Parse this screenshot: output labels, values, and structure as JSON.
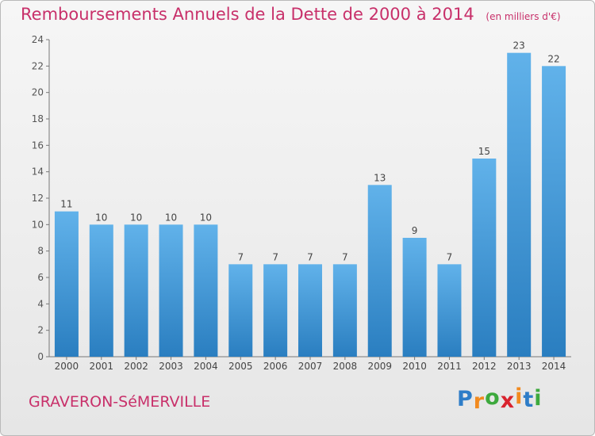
{
  "header": {
    "title": "Remboursements Annuels de la Dette de 2000 à 2014",
    "unit": "(en milliers d'€)"
  },
  "footer": {
    "city": "GRAVERON-SéMERVILLE",
    "logo_letters": [
      "P",
      "r",
      "o",
      "x",
      "i",
      "t",
      "i"
    ],
    "logo_colors": [
      "#2e7dc8",
      "#f28a1e",
      "#3da93d",
      "#d9232e",
      "#f28a1e",
      "#2e7dc8",
      "#3da93d"
    ]
  },
  "colors": {
    "title": "#c8306a",
    "bar_top": "#61b2ea",
    "bar_bottom": "#2a7ec0"
  },
  "chart_data": {
    "type": "bar",
    "title": "Remboursements Annuels de la Dette de 2000 à 2014",
    "xlabel": "",
    "ylabel": "",
    "ylim": [
      0,
      24
    ],
    "yticks": [
      0,
      2,
      4,
      6,
      8,
      10,
      12,
      14,
      16,
      18,
      20,
      22,
      24
    ],
    "grid": false,
    "categories": [
      "2000",
      "2001",
      "2002",
      "2003",
      "2004",
      "2005",
      "2006",
      "2007",
      "2008",
      "2009",
      "2010",
      "2011",
      "2012",
      "2013",
      "2014"
    ],
    "values": [
      11,
      10,
      10,
      10,
      10,
      7,
      7,
      7,
      7,
      13,
      9,
      7,
      15,
      23,
      22
    ]
  }
}
